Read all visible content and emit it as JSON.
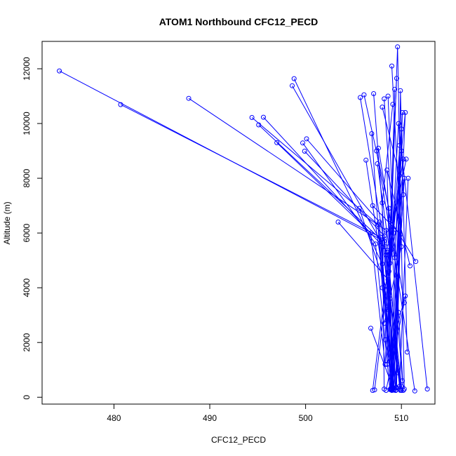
{
  "chart_data": {
    "type": "line",
    "title": "ATOM1 Northbound CFC12_PECD",
    "xlabel": "CFC12_PECD",
    "ylabel": "Altitude (m)",
    "xlim": [
      472.5,
      513.5
    ],
    "ylim": [
      -250,
      13000
    ],
    "xticks": [
      480,
      490,
      500,
      510
    ],
    "yticks": [
      0,
      2000,
      4000,
      6000,
      8000,
      10000,
      12000
    ],
    "series_color": "#0000ff",
    "series": [
      {
        "x": [
          474.3,
          508.2,
          509.4,
          510.0,
          508.8,
          509.6,
          510.3
        ],
        "y": [
          11920,
          5700,
          250,
          9800,
          4900,
          12800,
          300
        ]
      },
      {
        "x": [
          480.7,
          507.8,
          509.1,
          510.2,
          508.6,
          509.9
        ],
        "y": [
          10690,
          5850,
          330,
          8700,
          5200,
          250
        ]
      },
      {
        "x": [
          487.8,
          508.4,
          509.2,
          510.4,
          509.0,
          510.1
        ],
        "y": [
          10920,
          6100,
          280,
          10400,
          5400,
          600
        ]
      },
      {
        "x": [
          494.4,
          507.6,
          508.9,
          510.0,
          509.3,
          511.4
        ],
        "y": [
          10220,
          6300,
          300,
          9000,
          5100,
          230
        ]
      },
      {
        "x": [
          495.6,
          508.1,
          509.5,
          509.9,
          510.6
        ],
        "y": [
          10230,
          5500,
          350,
          11200,
          1650
        ]
      },
      {
        "x": [
          495.1,
          507.9,
          509.0,
          510.3,
          508.7,
          510.0
        ],
        "y": [
          9950,
          5750,
          250,
          8000,
          4600,
          400
        ]
      },
      {
        "x": [
          497.0,
          506.8,
          508.3,
          509.7,
          512.7
        ],
        "y": [
          9300,
          6000,
          1200,
          10000,
          300
        ]
      },
      {
        "x": [
          498.6,
          508.5,
          509.0,
          510.2
        ],
        "y": [
          11380,
          5300,
          300,
          7400
        ]
      },
      {
        "x": [
          498.8,
          508.0,
          509.2,
          506.8
        ],
        "y": [
          11640,
          4870,
          260,
          2520
        ]
      },
      {
        "x": [
          499.7,
          507.3,
          508.8,
          509.8
        ],
        "y": [
          9290,
          5600,
          280,
          9200
        ]
      },
      {
        "x": [
          499.9,
          508.2,
          509.1,
          510.1
        ],
        "y": [
          8990,
          5900,
          330,
          10400
        ]
      },
      {
        "x": [
          500.1,
          507.7,
          508.9
        ],
        "y": [
          9440,
          6400,
          280
        ]
      },
      {
        "x": [
          503.4,
          508.6,
          509.4
        ],
        "y": [
          6400,
          4300,
          250
        ]
      },
      {
        "x": [
          505.7,
          508.4,
          509.8,
          510.7
        ],
        "y": [
          10950,
          5200,
          400,
          8000
        ]
      },
      {
        "x": [
          506.1,
          508.7,
          509.0
        ],
        "y": [
          11050,
          6900,
          260
        ]
      },
      {
        "x": [
          507.1,
          508.3,
          509.6
        ],
        "y": [
          11090,
          5500,
          900
        ]
      },
      {
        "x": [
          506.9,
          508.0,
          509.4
        ],
        "y": [
          9630,
          4000,
          350
        ]
      },
      {
        "x": [
          506.3,
          508.6,
          509.9
        ],
        "y": [
          8660,
          3200,
          300
        ]
      },
      {
        "x": [
          505.6,
          508.8,
          510.0
        ],
        "y": [
          6900,
          3600,
          250
        ]
      },
      {
        "x": [
          511.5,
          508.8
        ],
        "y": [
          4960,
          6500
        ]
      },
      {
        "x": [
          510.9,
          508.5,
          509.1
        ],
        "y": [
          4800,
          8300,
          300
        ]
      },
      {
        "x": [
          507.4,
          509.6,
          508.9
        ],
        "y": [
          9000,
          4400,
          330
        ]
      },
      {
        "x": [
          507.6,
          510.3,
          508.4
        ],
        "y": [
          9100,
          3450,
          250
        ]
      },
      {
        "x": [
          509.0,
          510.0,
          508.2
        ],
        "y": [
          12100,
          5500,
          2700
        ]
      },
      {
        "x": [
          509.3,
          508.5,
          510.4
        ],
        "y": [
          11250,
          1200,
          3700
        ]
      },
      {
        "x": [
          509.5,
          508.3,
          509.3
        ],
        "y": [
          11650,
          2100,
          300
        ]
      },
      {
        "x": [
          508.2,
          509.7,
          510.2
        ],
        "y": [
          10900,
          3100,
          250
        ]
      },
      {
        "x": [
          508.6,
          509.2,
          507.2
        ],
        "y": [
          11000,
          6000,
          270
        ]
      },
      {
        "x": [
          508.0,
          509.8,
          507.0
        ],
        "y": [
          10600,
          8100,
          250
        ]
      },
      {
        "x": [
          509.1,
          508.0,
          508.2
        ],
        "y": [
          10700,
          7100,
          300
        ]
      },
      {
        "x": [
          507.5,
          508.7,
          510.5
        ],
        "y": [
          8530,
          5500,
          8700
        ]
      },
      {
        "x": [
          507.0,
          509.9,
          509.4
        ],
        "y": [
          7000,
          5950,
          260
        ]
      }
    ]
  }
}
